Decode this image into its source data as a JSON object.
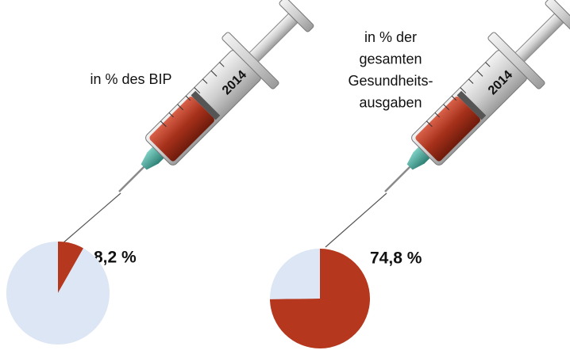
{
  "chart_data": [
    {
      "type": "pie",
      "title": [
        "in % des BIP"
      ],
      "year_label": "2014",
      "values": [
        8.2,
        91.8
      ],
      "value_labels": [
        "8,2 %",
        null
      ],
      "colors": [
        "#b5371e",
        "#dce6f4"
      ]
    },
    {
      "type": "pie",
      "title": [
        "in % der",
        "gesamten",
        "Gesundheits-",
        "ausgaben"
      ],
      "year_label": "2014",
      "values": [
        74.8,
        25.2
      ],
      "value_labels": [
        "74,8 %",
        null
      ],
      "colors": [
        "#b5371e",
        "#dce6f4"
      ]
    }
  ]
}
